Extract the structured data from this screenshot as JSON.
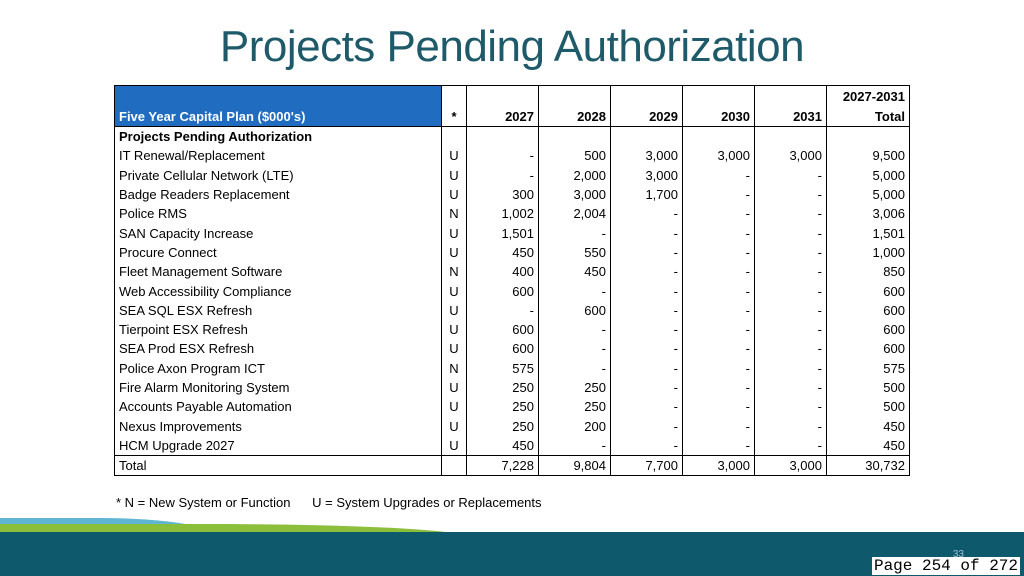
{
  "title": "Projects Pending Authorization",
  "table": {
    "plan_label": "Five Year Capital Plan ($000's)",
    "flag_header": "*",
    "year_headers": [
      "2027",
      "2028",
      "2029",
      "2030",
      "2031"
    ],
    "total_header_top": "2027-2031",
    "total_header": "Total",
    "section_title": "Projects Pending Authorization",
    "rows": [
      {
        "name": "IT Renewal/Replacement",
        "flag": "U",
        "v": [
          "-",
          "500",
          "3,000",
          "3,000",
          "3,000"
        ],
        "total": "9,500"
      },
      {
        "name": "Private Cellular Network (LTE)",
        "flag": "U",
        "v": [
          "-",
          "2,000",
          "3,000",
          "-",
          "-"
        ],
        "total": "5,000"
      },
      {
        "name": "Badge Readers Replacement",
        "flag": "U",
        "v": [
          "300",
          "3,000",
          "1,700",
          "-",
          "-"
        ],
        "total": "5,000"
      },
      {
        "name": "Police RMS",
        "flag": "N",
        "v": [
          "1,002",
          "2,004",
          "-",
          "-",
          "-"
        ],
        "total": "3,006"
      },
      {
        "name": "SAN Capacity Increase",
        "flag": "U",
        "v": [
          "1,501",
          "-",
          "-",
          "-",
          "-"
        ],
        "total": "1,501"
      },
      {
        "name": "Procure Connect",
        "flag": "U",
        "v": [
          "450",
          "550",
          "-",
          "-",
          "-"
        ],
        "total": "1,000"
      },
      {
        "name": "Fleet Management Software",
        "flag": "N",
        "v": [
          "400",
          "450",
          "-",
          "-",
          "-"
        ],
        "total": "850"
      },
      {
        "name": "Web Accessibility Compliance",
        "flag": "U",
        "v": [
          "600",
          "-",
          "-",
          "-",
          "-"
        ],
        "total": "600"
      },
      {
        "name": "SEA SQL ESX Refresh",
        "flag": "U",
        "v": [
          "-",
          "600",
          "-",
          "-",
          "-"
        ],
        "total": "600"
      },
      {
        "name": "Tierpoint ESX Refresh",
        "flag": "U",
        "v": [
          "600",
          "-",
          "-",
          "-",
          "-"
        ],
        "total": "600"
      },
      {
        "name": "SEA Prod ESX Refresh",
        "flag": "U",
        "v": [
          "600",
          "-",
          "-",
          "-",
          "-"
        ],
        "total": "600"
      },
      {
        "name": "Police Axon Program ICT",
        "flag": "N",
        "v": [
          "575",
          "-",
          "-",
          "-",
          "-"
        ],
        "total": "575"
      },
      {
        "name": "Fire Alarm Monitoring System",
        "flag": "U",
        "v": [
          "250",
          "250",
          "-",
          "-",
          "-"
        ],
        "total": "500"
      },
      {
        "name": "Accounts Payable Automation",
        "flag": "U",
        "v": [
          "250",
          "250",
          "-",
          "-",
          "-"
        ],
        "total": "500"
      },
      {
        "name": "Nexus Improvements",
        "flag": "U",
        "v": [
          "250",
          "200",
          "-",
          "-",
          "-"
        ],
        "total": "450"
      },
      {
        "name": "HCM Upgrade 2027",
        "flag": "U",
        "v": [
          "450",
          "-",
          "-",
          "-",
          "-"
        ],
        "total": "450"
      }
    ],
    "total_row": {
      "name": "Total",
      "flag": "",
      "v": [
        "7,228",
        "9,804",
        "7,700",
        "3,000",
        "3,000"
      ],
      "total": "30,732"
    }
  },
  "footnote": {
    "new": "* N = New System or Function",
    "upgrade": "U = System Upgrades or Replacements"
  },
  "slide_number": "33",
  "page_label": "Page 254 of 272",
  "colors": {
    "title": "#1f5a6a",
    "header_blue": "#1f6cc0",
    "band": "#0e5a6c"
  }
}
